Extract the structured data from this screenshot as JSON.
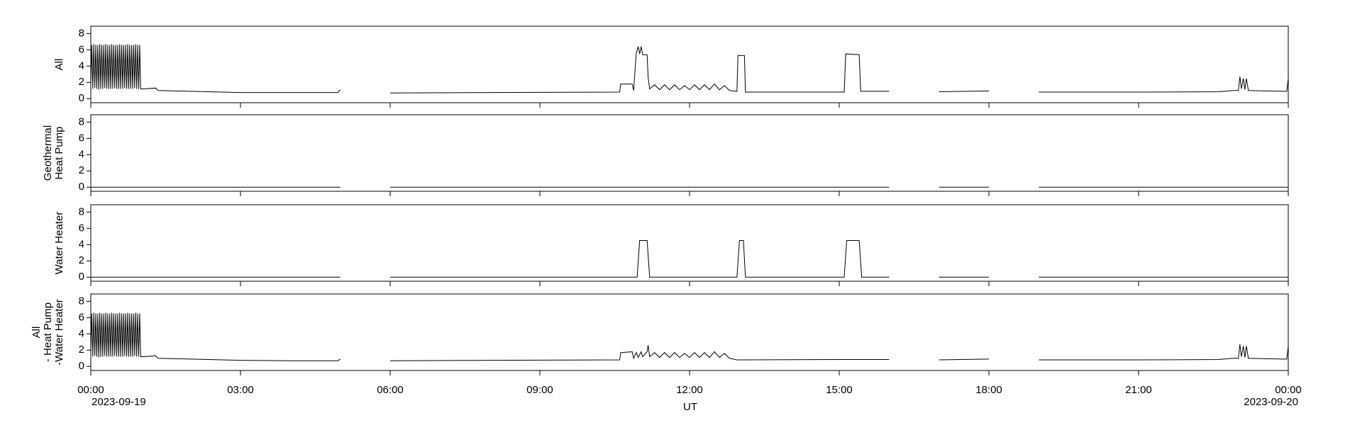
{
  "chart_data": [
    {
      "type": "line",
      "ylabel": [
        "All"
      ],
      "ylim": [
        -0.5,
        8.9
      ],
      "yticks": [
        0,
        2,
        4,
        6,
        8
      ],
      "xlim": [
        0,
        24
      ],
      "x": [
        0,
        0.02,
        0.04,
        0.06,
        0.08,
        0.1,
        0.12,
        0.14,
        0.16,
        0.18,
        0.2,
        0.22,
        0.24,
        0.26,
        0.28,
        0.3,
        0.32,
        0.34,
        0.36,
        0.38,
        0.4,
        0.42,
        0.44,
        0.46,
        0.48,
        0.5,
        0.52,
        0.54,
        0.56,
        0.58,
        0.6,
        0.62,
        0.64,
        0.66,
        0.68,
        0.7,
        0.72,
        0.74,
        0.76,
        0.78,
        0.8,
        0.82,
        0.84,
        0.86,
        0.88,
        0.9,
        0.92,
        0.94,
        0.96,
        0.98,
        1.0,
        1.05,
        1.3,
        1.35,
        2,
        3,
        4,
        4.95,
        5.0,
        5.5,
        6.0,
        8,
        10.6,
        10.62,
        10.85,
        10.88,
        10.93,
        10.97,
        11.0,
        11.03,
        11.06,
        11.15,
        11.17,
        11.2,
        11.3,
        11.4,
        11.5,
        11.6,
        11.7,
        11.8,
        11.9,
        12.0,
        12.1,
        12.2,
        12.3,
        12.4,
        12.5,
        12.6,
        12.7,
        12.8,
        12.95,
        12.97,
        13.1,
        13.12,
        15.1,
        15.13,
        15.4,
        15.43,
        16.0,
        16.5,
        17.0,
        18.0,
        18.5,
        19.0,
        21.0,
        22.6,
        22.9,
        23.0,
        23.03,
        23.06,
        23.1,
        23.13,
        23.16,
        23.2,
        23.9,
        23.97,
        24.0
      ],
      "values": [
        1.5,
        6.6,
        1.2,
        6.7,
        1.3,
        6.6,
        1.2,
        6.6,
        1.1,
        6.7,
        1.2,
        6.6,
        1.2,
        6.6,
        1.3,
        6.7,
        1.2,
        6.6,
        1.2,
        6.6,
        1.2,
        6.7,
        1.2,
        6.6,
        1.3,
        6.6,
        1.2,
        6.6,
        1.2,
        6.7,
        1.2,
        6.6,
        1.2,
        6.6,
        1.3,
        6.6,
        1.2,
        6.7,
        1.2,
        6.6,
        1.2,
        6.6,
        1.2,
        6.6,
        1.3,
        6.7,
        1.2,
        6.6,
        1.2,
        6.6,
        1.2,
        1.2,
        1.3,
        1.0,
        0.9,
        0.75,
        0.75,
        0.75,
        1.1,
        null,
        0.7,
        0.75,
        0.8,
        1.8,
        1.8,
        1.0,
        5.5,
        6.4,
        5.5,
        6.4,
        5.4,
        5.4,
        2.6,
        1.2,
        1.7,
        1.1,
        1.7,
        1.1,
        1.7,
        1.1,
        1.6,
        1.1,
        1.7,
        1.1,
        1.7,
        1.1,
        1.8,
        1.1,
        1.6,
        1.0,
        0.9,
        5.3,
        5.3,
        0.8,
        0.8,
        5.5,
        5.4,
        0.9,
        0.9,
        null,
        0.85,
        0.95,
        null,
        0.8,
        0.8,
        0.85,
        1.0,
        1.0,
        2.7,
        1.2,
        2.5,
        1.1,
        2.5,
        1.0,
        0.9,
        0.9,
        2.5
      ]
    },
    {
      "type": "line",
      "ylabel": [
        "Geothermal",
        "Heat Pump"
      ],
      "ylim": [
        -0.5,
        8.9
      ],
      "yticks": [
        0,
        2,
        4,
        6,
        8
      ],
      "xlim": [
        0,
        24
      ],
      "x": [
        0,
        5,
        5.5,
        6,
        16,
        16.5,
        17,
        18,
        18.5,
        19,
        24
      ],
      "values": [
        0,
        0,
        null,
        0,
        0,
        null,
        0,
        0,
        null,
        0,
        0
      ]
    },
    {
      "type": "line",
      "ylabel": [
        "Water Heater"
      ],
      "ylim": [
        -0.5,
        8.9
      ],
      "yticks": [
        0,
        2,
        4,
        6,
        8
      ],
      "xlim": [
        0,
        24
      ],
      "x": [
        0,
        5,
        5.5,
        6,
        10.95,
        11.0,
        11.15,
        11.2,
        12.95,
        13.0,
        13.08,
        13.12,
        15.1,
        15.15,
        15.4,
        15.45,
        16,
        16.5,
        17,
        18,
        18.5,
        19,
        24
      ],
      "values": [
        0,
        0,
        null,
        0,
        0,
        4.5,
        4.5,
        0,
        0,
        4.5,
        4.5,
        0,
        0,
        4.5,
        4.5,
        0,
        0,
        null,
        0,
        0,
        null,
        0,
        0
      ]
    },
    {
      "type": "line",
      "ylabel": [
        "All",
        "- Heat Pump",
        "-Water Heater"
      ],
      "ylim": [
        -0.5,
        8.9
      ],
      "yticks": [
        0,
        2,
        4,
        6,
        8
      ],
      "xlim": [
        0,
        24
      ],
      "x": [
        0,
        0.02,
        0.04,
        0.06,
        0.08,
        0.1,
        0.12,
        0.14,
        0.16,
        0.18,
        0.2,
        0.22,
        0.24,
        0.26,
        0.28,
        0.3,
        0.32,
        0.34,
        0.36,
        0.38,
        0.4,
        0.42,
        0.44,
        0.46,
        0.48,
        0.5,
        0.52,
        0.54,
        0.56,
        0.58,
        0.6,
        0.62,
        0.64,
        0.66,
        0.68,
        0.7,
        0.72,
        0.74,
        0.76,
        0.78,
        0.8,
        0.82,
        0.84,
        0.86,
        0.88,
        0.9,
        0.92,
        0.94,
        0.96,
        0.98,
        1.0,
        1.05,
        1.3,
        1.35,
        2,
        3,
        4,
        4.95,
        5.0,
        5.5,
        6.0,
        8,
        10.6,
        10.62,
        10.85,
        10.88,
        10.93,
        10.97,
        11.03,
        11.06,
        11.15,
        11.17,
        11.2,
        11.3,
        11.4,
        11.5,
        11.6,
        11.7,
        11.8,
        11.9,
        12.0,
        12.1,
        12.2,
        12.3,
        12.4,
        12.5,
        12.6,
        12.7,
        12.8,
        12.95,
        13.1,
        15.1,
        16.0,
        16.5,
        17.0,
        18.0,
        18.5,
        19.0,
        21.0,
        22.6,
        22.9,
        23.0,
        23.03,
        23.06,
        23.1,
        23.13,
        23.16,
        23.2,
        23.9,
        23.97,
        24.0
      ],
      "values": [
        1.5,
        6.5,
        1.2,
        6.6,
        1.3,
        6.5,
        1.2,
        6.5,
        1.1,
        6.6,
        1.2,
        6.5,
        1.2,
        6.5,
        1.3,
        6.6,
        1.2,
        6.5,
        1.2,
        6.5,
        1.2,
        6.6,
        1.2,
        6.5,
        1.3,
        6.5,
        1.2,
        6.5,
        1.2,
        6.6,
        1.2,
        6.5,
        1.2,
        6.5,
        1.3,
        6.5,
        1.2,
        6.6,
        1.2,
        6.5,
        1.2,
        6.5,
        1.2,
        6.5,
        1.3,
        6.6,
        1.2,
        6.5,
        1.2,
        6.5,
        1.2,
        1.2,
        1.3,
        1.0,
        0.9,
        0.75,
        0.7,
        0.7,
        0.9,
        null,
        0.7,
        0.75,
        0.8,
        1.7,
        1.8,
        1.0,
        1.7,
        1.1,
        1.8,
        1.2,
        1.8,
        2.6,
        1.2,
        1.7,
        1.1,
        1.7,
        1.1,
        1.7,
        1.1,
        1.6,
        1.1,
        1.7,
        1.1,
        1.7,
        1.1,
        1.8,
        1.1,
        1.6,
        1.0,
        0.8,
        0.8,
        0.85,
        0.85,
        null,
        0.8,
        0.9,
        null,
        0.8,
        0.8,
        0.85,
        1.0,
        1.0,
        2.7,
        1.2,
        2.5,
        1.1,
        2.5,
        1.0,
        0.9,
        0.9,
        2.5
      ],
      "xticks": [
        {
          "value": 0,
          "label": "00:00"
        },
        {
          "value": 3,
          "label": "03:00"
        },
        {
          "value": 6,
          "label": "06:00"
        },
        {
          "value": 9,
          "label": "09:00"
        },
        {
          "value": 12,
          "label": "12:00"
        },
        {
          "value": 15,
          "label": "15:00"
        },
        {
          "value": 18,
          "label": "18:00"
        },
        {
          "value": 21,
          "label": "21:00"
        },
        {
          "value": 24,
          "label": "00:00"
        }
      ],
      "x_start_date": "2023-09-19",
      "x_end_date": "2023-09-20",
      "xlabel": "UT"
    }
  ]
}
